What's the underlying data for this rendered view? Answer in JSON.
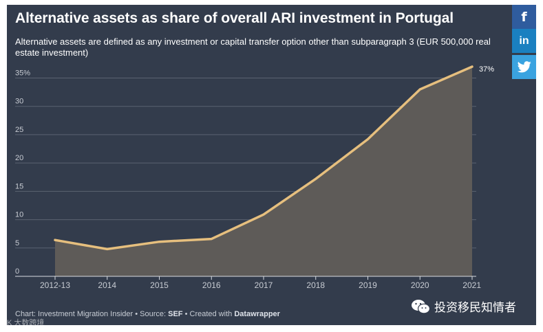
{
  "title": "Alternative assets as share of overall ARI investment in Portugal",
  "subtitle": "Alternative assets are defined as any investment or capital transfer option other than subparagraph 3 (EUR 500,000 real estate investment)",
  "footer": {
    "chart_prefix": "Chart: Investment Migration Insider • Source: ",
    "source": "SEF",
    "created_prefix": " • Created with ",
    "tool": "Datawrapper"
  },
  "social": {
    "facebook": "f",
    "linkedin": "in"
  },
  "watermark": {
    "text": "投资移民知情者",
    "corner": "K 大数跨境"
  },
  "colors": {
    "background": "#333c4c",
    "line": "#e6bf7e",
    "area": "#5e5b58",
    "grid": "#5b6371",
    "axis_text": "#c8ccd3"
  },
  "chart_data": {
    "type": "area",
    "title": "Alternative assets as share of overall ARI investment in Portugal",
    "categories": [
      "2012-13",
      "2014",
      "2015",
      "2016",
      "2017",
      "2018",
      "2019",
      "2020",
      "2021"
    ],
    "values": [
      6.4,
      4.8,
      6.1,
      6.6,
      10.9,
      17.2,
      24.2,
      33.0,
      37.0
    ],
    "yticks": [
      0,
      5,
      10,
      15,
      20,
      25,
      30,
      35
    ],
    "ytick_labels": [
      "0",
      "5",
      "10",
      "15",
      "20",
      "25",
      "30",
      "35%"
    ],
    "ylim": [
      0,
      37
    ],
    "end_label": "37%",
    "xlabel": "",
    "ylabel": "",
    "grid": true
  }
}
